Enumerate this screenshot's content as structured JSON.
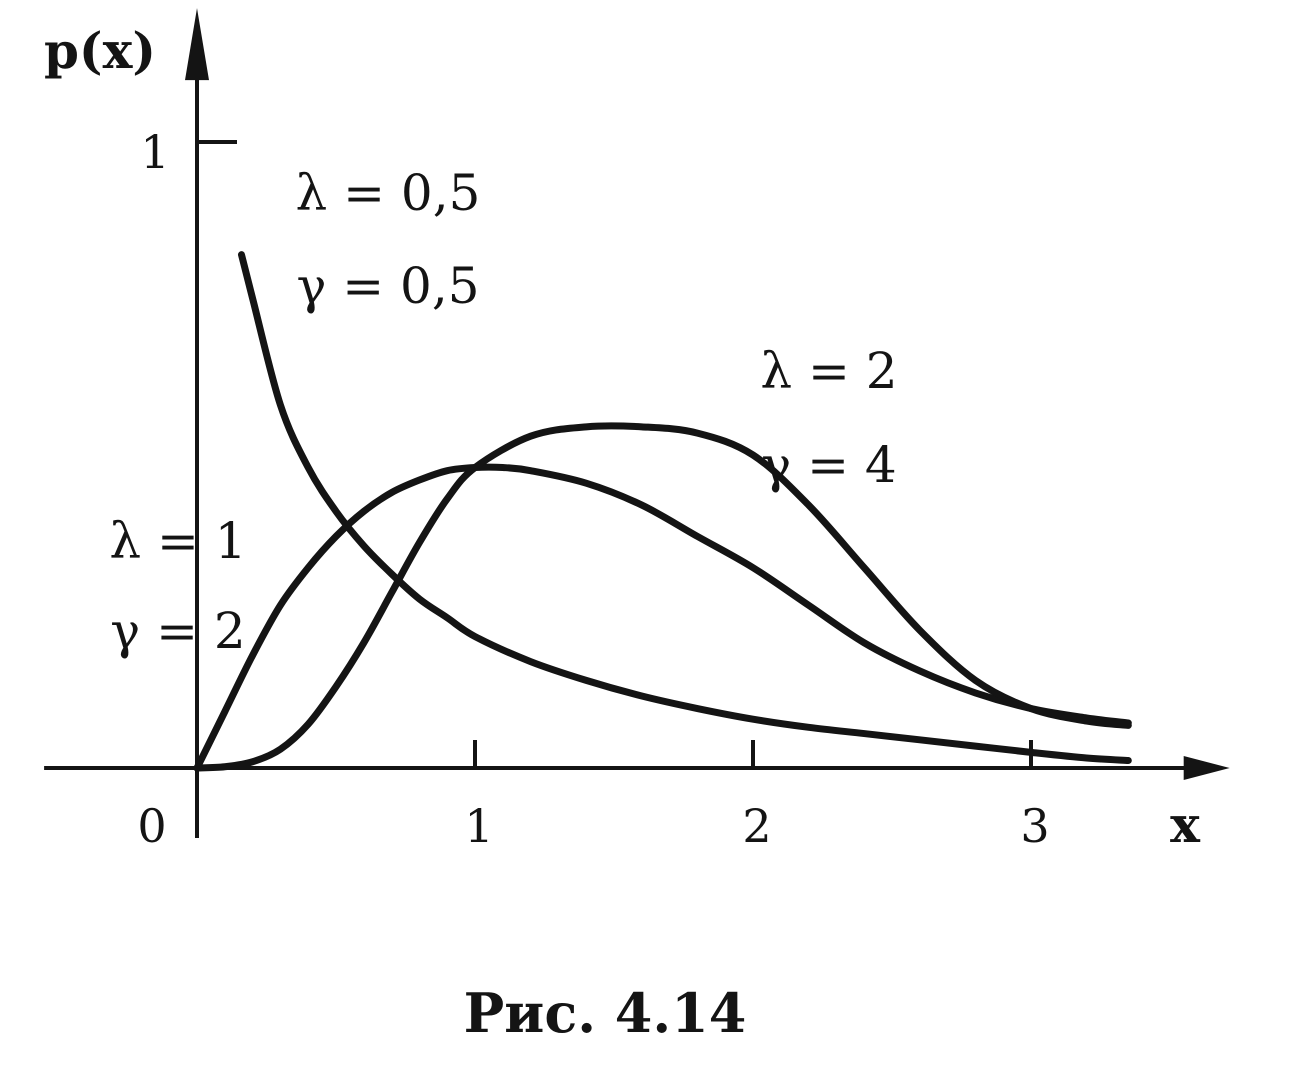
{
  "chart_data": {
    "type": "line",
    "ylabel": "p(x)",
    "xlabel": "x",
    "xlim": [
      -0.55,
      3.65
    ],
    "ylim": [
      0,
      1.15
    ],
    "x_ticks": [
      {
        "value": 0,
        "label": "0"
      },
      {
        "value": 1,
        "label": "1"
      },
      {
        "value": 2,
        "label": "2"
      },
      {
        "value": 3,
        "label": "3"
      }
    ],
    "y_ticks": [
      {
        "value": 1,
        "label": "1"
      }
    ],
    "grid": false,
    "legend": "none",
    "series": [
      {
        "parameters": [
          "λ = 0,5",
          "γ = 0,5"
        ],
        "x": [
          0.16,
          0.2,
          0.3,
          0.4,
          0.5,
          0.6,
          0.7,
          0.8,
          0.9,
          1.0,
          1.2,
          1.4,
          1.6,
          1.8,
          2.0,
          2.2,
          2.4,
          2.6,
          2.8,
          3.0,
          3.2,
          3.35
        ],
        "y": [
          0.82,
          0.75,
          0.58,
          0.48,
          0.41,
          0.355,
          0.31,
          0.27,
          0.24,
          0.21,
          0.17,
          0.14,
          0.115,
          0.095,
          0.078,
          0.065,
          0.055,
          0.045,
          0.035,
          0.025,
          0.016,
          0.012
        ]
      },
      {
        "parameters": [
          "λ = 1",
          "γ = 2"
        ],
        "x": [
          0,
          0.1,
          0.2,
          0.3,
          0.4,
          0.5,
          0.6,
          0.7,
          0.8,
          0.9,
          1.0,
          1.1,
          1.2,
          1.4,
          1.6,
          1.8,
          2.0,
          2.2,
          2.4,
          2.6,
          2.8,
          3.0,
          3.2,
          3.35
        ],
        "y": [
          0,
          0.09,
          0.18,
          0.26,
          0.32,
          0.37,
          0.41,
          0.44,
          0.46,
          0.475,
          0.48,
          0.48,
          0.475,
          0.455,
          0.42,
          0.37,
          0.32,
          0.26,
          0.2,
          0.155,
          0.12,
          0.095,
          0.08,
          0.072
        ]
      },
      {
        "parameters": [
          "λ = 2",
          "γ = 4"
        ],
        "x": [
          0,
          0.1,
          0.2,
          0.3,
          0.4,
          0.5,
          0.6,
          0.7,
          0.8,
          0.9,
          1.0,
          1.2,
          1.4,
          1.6,
          1.8,
          2.0,
          2.2,
          2.4,
          2.6,
          2.8,
          3.0,
          3.2,
          3.35
        ],
        "y": [
          0,
          0.002,
          0.01,
          0.03,
          0.07,
          0.13,
          0.2,
          0.28,
          0.36,
          0.43,
          0.48,
          0.53,
          0.545,
          0.545,
          0.535,
          0.5,
          0.42,
          0.32,
          0.22,
          0.14,
          0.095,
          0.075,
          0.068
        ]
      }
    ]
  },
  "caption": "Рис. 4.14"
}
